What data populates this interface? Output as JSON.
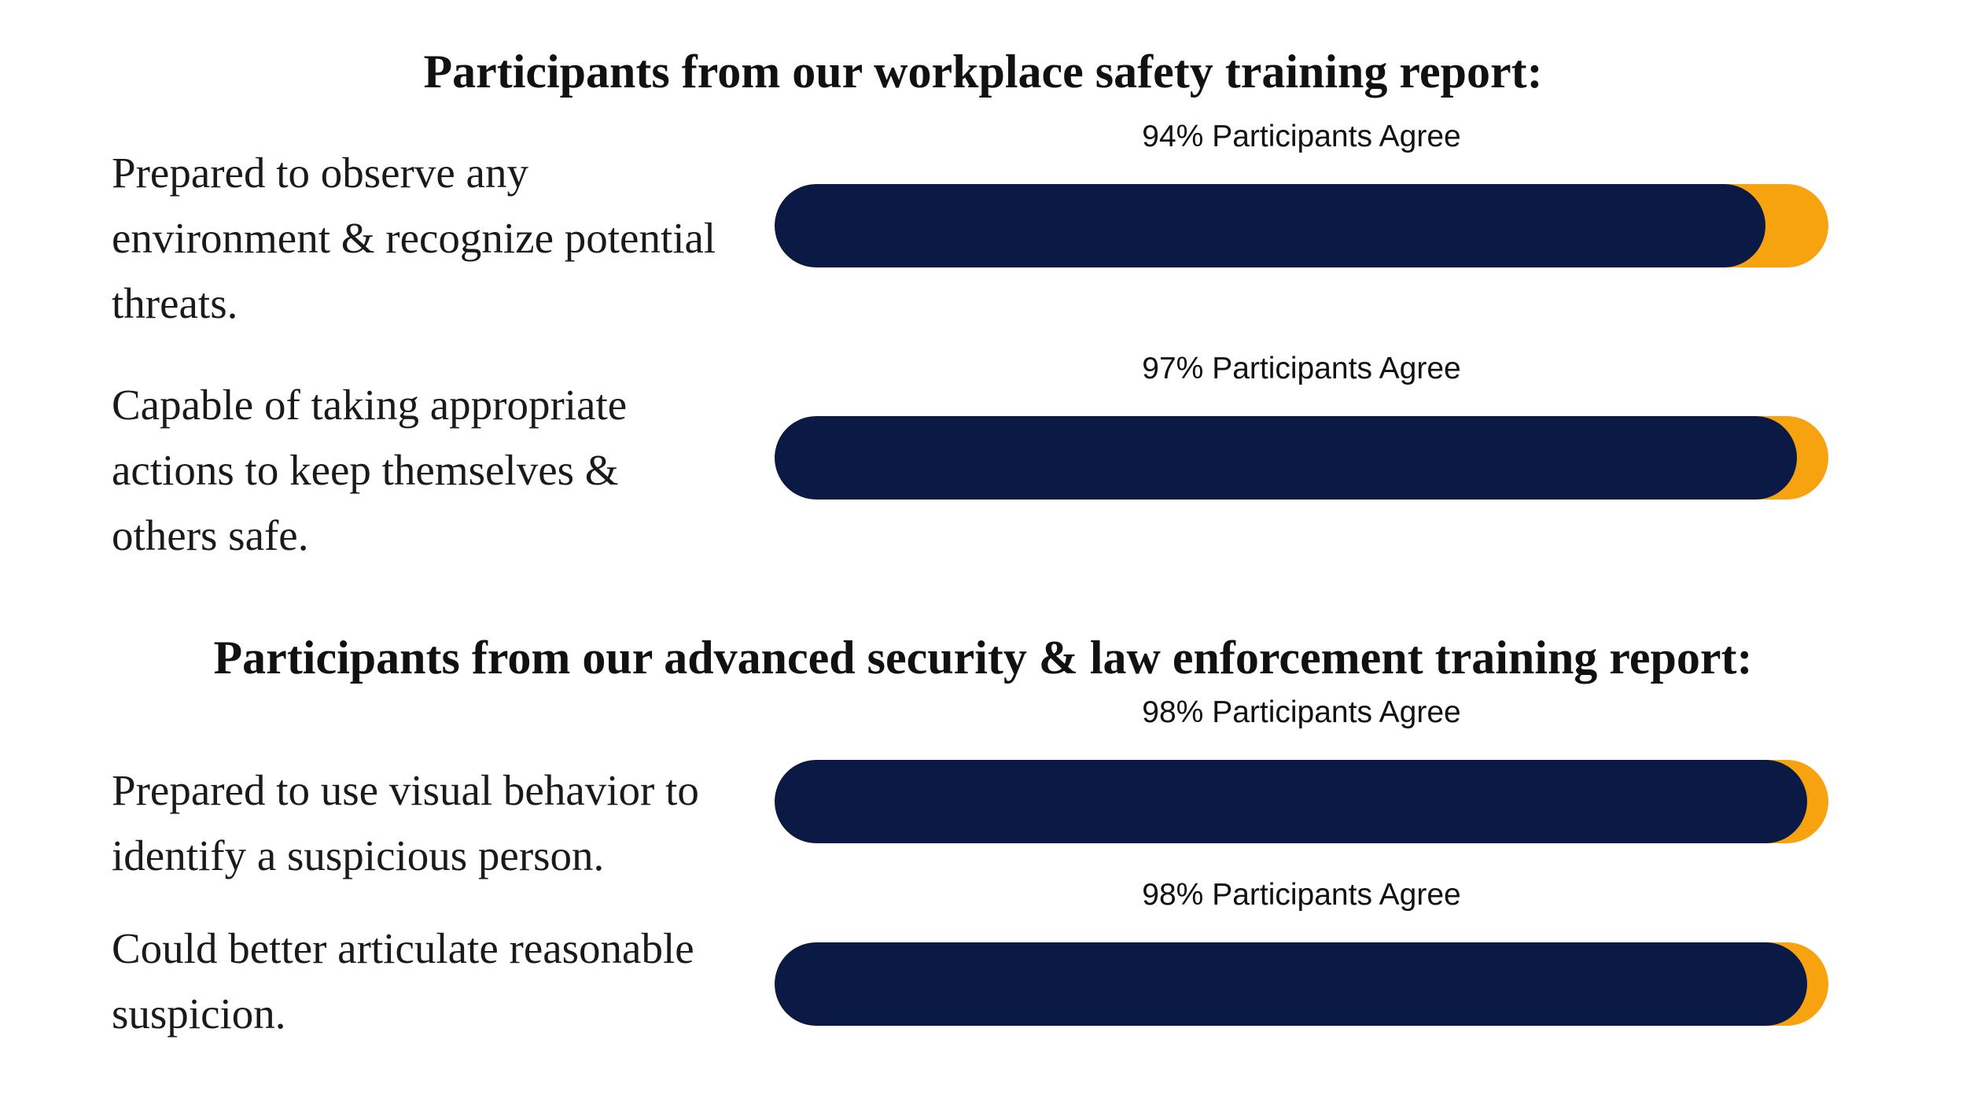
{
  "sections": [
    {
      "heading": "Participants from our workplace safety training report:"
    },
    {
      "heading": "Participants from our advanced security & law enforcement training report:"
    }
  ],
  "items": [
    {
      "description": "Prepared to observe any environment & recognize potential threats.",
      "label": "94% Participants Agree",
      "value": 94
    },
    {
      "description": "Capable of taking appropriate actions to keep themselves & others safe.",
      "label": "97% Participants Agree",
      "value": 97
    },
    {
      "description": "Prepared to use visual behavior to identify a suspicious person.",
      "label": "98% Participants Agree",
      "value": 98
    },
    {
      "description": "Could better articulate reasonable suspicion.",
      "label": "98% Participants Agree",
      "value": 98
    }
  ],
  "chart_data": {
    "type": "bar",
    "orientation": "horizontal",
    "categories": [
      "Prepared to observe any environment & recognize potential threats.",
      "Capable of taking appropriate actions to keep themselves & others safe.",
      "Prepared to use visual behavior to identify a suspicious person.",
      "Could better articulate reasonable suspicion."
    ],
    "values": [
      94,
      97,
      98,
      98
    ],
    "unit": "%",
    "xlim": [
      0,
      100
    ],
    "grid": false
  },
  "colors": {
    "fill": "#0a1a45",
    "track": "#f7a30f",
    "text": "#111111"
  }
}
